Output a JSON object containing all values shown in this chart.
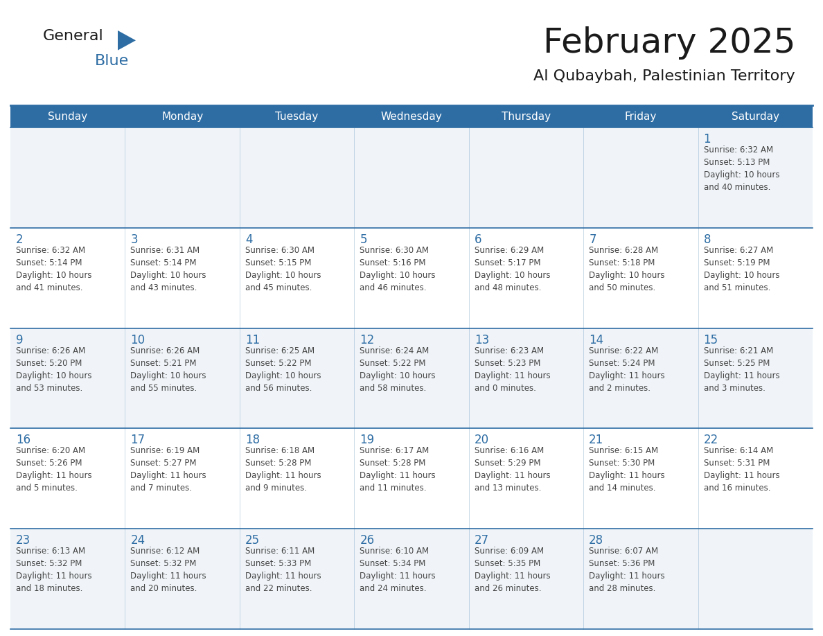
{
  "title": "February 2025",
  "subtitle": "Al Qubaybah, Palestinian Territory",
  "days_of_week": [
    "Sunday",
    "Monday",
    "Tuesday",
    "Wednesday",
    "Thursday",
    "Friday",
    "Saturday"
  ],
  "header_bg": "#2E6DA4",
  "header_text": "#FFFFFF",
  "cell_bg_row0": "#F0F4F8",
  "cell_bg_row1": "#FFFFFF",
  "cell_bg_row2": "#F0F4F8",
  "cell_bg_row3": "#FFFFFF",
  "cell_bg_row4": "#F0F4F8",
  "cell_text": "#444444",
  "day_number_color": "#2E6DA4",
  "line_color": "#2E6DA4",
  "title_color": "#1A1A1A",
  "subtitle_color": "#1A1A1A",
  "logo_general_color": "#1A1A1A",
  "logo_blue_color": "#2E6DA4",
  "logo_triangle_color": "#2E6DA4",
  "calendar_data": [
    [
      {
        "day": null,
        "info": null
      },
      {
        "day": null,
        "info": null
      },
      {
        "day": null,
        "info": null
      },
      {
        "day": null,
        "info": null
      },
      {
        "day": null,
        "info": null
      },
      {
        "day": null,
        "info": null
      },
      {
        "day": "1",
        "info": "Sunrise: 6:32 AM\nSunset: 5:13 PM\nDaylight: 10 hours\nand 40 minutes."
      }
    ],
    [
      {
        "day": "2",
        "info": "Sunrise: 6:32 AM\nSunset: 5:14 PM\nDaylight: 10 hours\nand 41 minutes."
      },
      {
        "day": "3",
        "info": "Sunrise: 6:31 AM\nSunset: 5:14 PM\nDaylight: 10 hours\nand 43 minutes."
      },
      {
        "day": "4",
        "info": "Sunrise: 6:30 AM\nSunset: 5:15 PM\nDaylight: 10 hours\nand 45 minutes."
      },
      {
        "day": "5",
        "info": "Sunrise: 6:30 AM\nSunset: 5:16 PM\nDaylight: 10 hours\nand 46 minutes."
      },
      {
        "day": "6",
        "info": "Sunrise: 6:29 AM\nSunset: 5:17 PM\nDaylight: 10 hours\nand 48 minutes."
      },
      {
        "day": "7",
        "info": "Sunrise: 6:28 AM\nSunset: 5:18 PM\nDaylight: 10 hours\nand 50 minutes."
      },
      {
        "day": "8",
        "info": "Sunrise: 6:27 AM\nSunset: 5:19 PM\nDaylight: 10 hours\nand 51 minutes."
      }
    ],
    [
      {
        "day": "9",
        "info": "Sunrise: 6:26 AM\nSunset: 5:20 PM\nDaylight: 10 hours\nand 53 minutes."
      },
      {
        "day": "10",
        "info": "Sunrise: 6:26 AM\nSunset: 5:21 PM\nDaylight: 10 hours\nand 55 minutes."
      },
      {
        "day": "11",
        "info": "Sunrise: 6:25 AM\nSunset: 5:22 PM\nDaylight: 10 hours\nand 56 minutes."
      },
      {
        "day": "12",
        "info": "Sunrise: 6:24 AM\nSunset: 5:22 PM\nDaylight: 10 hours\nand 58 minutes."
      },
      {
        "day": "13",
        "info": "Sunrise: 6:23 AM\nSunset: 5:23 PM\nDaylight: 11 hours\nand 0 minutes."
      },
      {
        "day": "14",
        "info": "Sunrise: 6:22 AM\nSunset: 5:24 PM\nDaylight: 11 hours\nand 2 minutes."
      },
      {
        "day": "15",
        "info": "Sunrise: 6:21 AM\nSunset: 5:25 PM\nDaylight: 11 hours\nand 3 minutes."
      }
    ],
    [
      {
        "day": "16",
        "info": "Sunrise: 6:20 AM\nSunset: 5:26 PM\nDaylight: 11 hours\nand 5 minutes."
      },
      {
        "day": "17",
        "info": "Sunrise: 6:19 AM\nSunset: 5:27 PM\nDaylight: 11 hours\nand 7 minutes."
      },
      {
        "day": "18",
        "info": "Sunrise: 6:18 AM\nSunset: 5:28 PM\nDaylight: 11 hours\nand 9 minutes."
      },
      {
        "day": "19",
        "info": "Sunrise: 6:17 AM\nSunset: 5:28 PM\nDaylight: 11 hours\nand 11 minutes."
      },
      {
        "day": "20",
        "info": "Sunrise: 6:16 AM\nSunset: 5:29 PM\nDaylight: 11 hours\nand 13 minutes."
      },
      {
        "day": "21",
        "info": "Sunrise: 6:15 AM\nSunset: 5:30 PM\nDaylight: 11 hours\nand 14 minutes."
      },
      {
        "day": "22",
        "info": "Sunrise: 6:14 AM\nSunset: 5:31 PM\nDaylight: 11 hours\nand 16 minutes."
      }
    ],
    [
      {
        "day": "23",
        "info": "Sunrise: 6:13 AM\nSunset: 5:32 PM\nDaylight: 11 hours\nand 18 minutes."
      },
      {
        "day": "24",
        "info": "Sunrise: 6:12 AM\nSunset: 5:32 PM\nDaylight: 11 hours\nand 20 minutes."
      },
      {
        "day": "25",
        "info": "Sunrise: 6:11 AM\nSunset: 5:33 PM\nDaylight: 11 hours\nand 22 minutes."
      },
      {
        "day": "26",
        "info": "Sunrise: 6:10 AM\nSunset: 5:34 PM\nDaylight: 11 hours\nand 24 minutes."
      },
      {
        "day": "27",
        "info": "Sunrise: 6:09 AM\nSunset: 5:35 PM\nDaylight: 11 hours\nand 26 minutes."
      },
      {
        "day": "28",
        "info": "Sunrise: 6:07 AM\nSunset: 5:36 PM\nDaylight: 11 hours\nand 28 minutes."
      },
      {
        "day": null,
        "info": null
      }
    ]
  ],
  "row_colors": [
    "#F0F4F8",
    "#FFFFFF",
    "#F0F4F8",
    "#FFFFFF",
    "#F0F4F8"
  ]
}
